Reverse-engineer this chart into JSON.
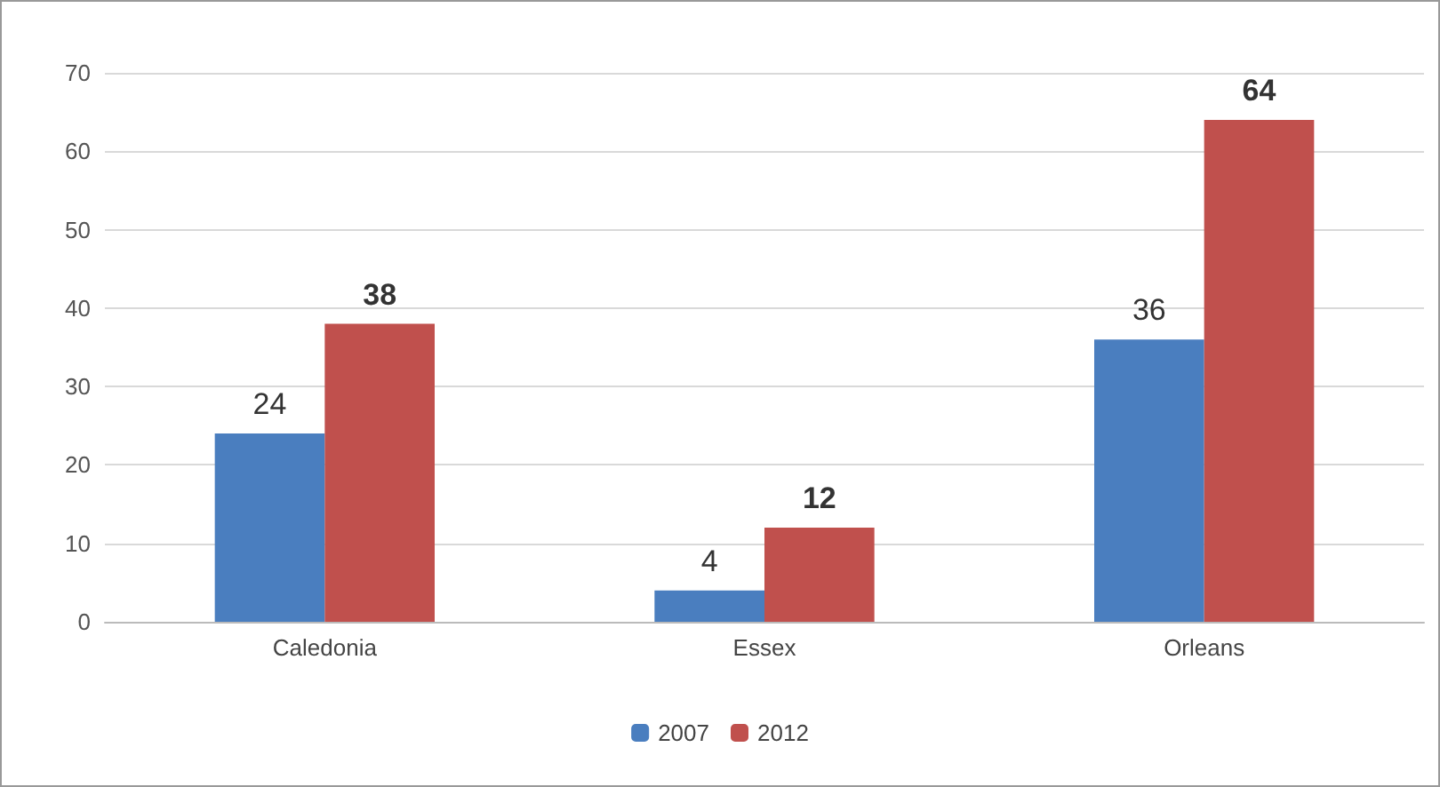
{
  "chart_data": {
    "type": "bar",
    "categories": [
      "Caledonia",
      "Essex",
      "Orleans"
    ],
    "series": [
      {
        "name": "2007",
        "color": "#4a7ebf",
        "values": [
          24,
          4,
          36
        ]
      },
      {
        "name": "2012",
        "color": "#c0504d",
        "values": [
          38,
          12,
          64
        ]
      }
    ],
    "ylim": [
      0,
      70
    ],
    "yticks": [
      0,
      10,
      20,
      30,
      40,
      50,
      60,
      70
    ],
    "grid": "y",
    "legend": "bottom",
    "data_labels": true
  }
}
